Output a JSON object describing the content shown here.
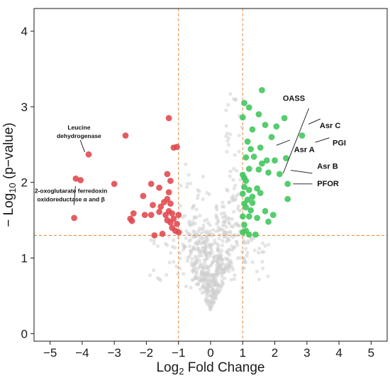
{
  "chart_data": {
    "type": "scatter",
    "title": "",
    "xlabel_pre": "Log",
    "xlabel_sub": "2",
    "xlabel_post": " Fold Change",
    "ylabel_pre": "− Log",
    "ylabel_sub": "10",
    "ylabel_post": " (p−value)",
    "xlim": [
      -5.5,
      5.5
    ],
    "ylim": [
      -0.1,
      4.3
    ],
    "x_ticks": [
      {
        "value": -5,
        "label": "−5"
      },
      {
        "value": -4,
        "label": "−4"
      },
      {
        "value": -3,
        "label": "−3"
      },
      {
        "value": -2,
        "label": "−2"
      },
      {
        "value": -1,
        "label": "−1"
      },
      {
        "value": 0,
        "label": "0"
      },
      {
        "value": 1,
        "label": "1"
      },
      {
        "value": 2,
        "label": "2"
      },
      {
        "value": 3,
        "label": "3"
      },
      {
        "value": 4,
        "label": "4"
      },
      {
        "value": 5,
        "label": "5"
      }
    ],
    "y_ticks": [
      {
        "value": 0,
        "label": "0"
      },
      {
        "value": 1,
        "label": "1"
      },
      {
        "value": 2,
        "label": "2"
      },
      {
        "value": 3,
        "label": "3"
      },
      {
        "value": 4,
        "label": "4"
      }
    ],
    "thresholds": {
      "fold_change": [
        -1,
        1
      ],
      "neg_log10_p": 1.3
    },
    "grid": false,
    "colors": {
      "down": "#e0474c",
      "up": "#3fc55a",
      "ns": "#cfcfcf",
      "threshold": "#e8873a"
    },
    "series": [
      {
        "group": "down",
        "points": [
          [
            -4.2,
            2.05
          ],
          [
            -4.05,
            2.03
          ],
          [
            -4.25,
            1.53
          ],
          [
            -3.8,
            2.37
          ],
          [
            -2.65,
            2.62
          ],
          [
            -3.0,
            1.98
          ],
          [
            -1.3,
            2.85
          ],
          [
            -1.15,
            2.46
          ],
          [
            -1.05,
            2.47
          ],
          [
            -1.35,
            2.11
          ],
          [
            -1.25,
            2.02
          ],
          [
            -1.3,
            1.87
          ],
          [
            -1.85,
            1.98
          ],
          [
            -1.6,
            1.93
          ],
          [
            -2.1,
            1.82
          ],
          [
            -1.35,
            1.78
          ],
          [
            -1.45,
            1.74
          ],
          [
            -1.8,
            1.7
          ],
          [
            -1.55,
            1.68
          ],
          [
            -1.25,
            1.72
          ],
          [
            -1.6,
            1.61
          ],
          [
            -1.3,
            1.62
          ],
          [
            -1.4,
            1.57
          ],
          [
            -1.2,
            1.59
          ],
          [
            -1.15,
            1.52
          ],
          [
            -1.0,
            1.57
          ],
          [
            -1.85,
            1.57
          ],
          [
            -2.05,
            1.57
          ],
          [
            -2.4,
            1.59
          ],
          [
            -2.5,
            1.52
          ],
          [
            -2.45,
            1.49
          ],
          [
            -1.05,
            1.45
          ],
          [
            -1.1,
            1.36
          ],
          [
            -1.0,
            1.34
          ],
          [
            -1.5,
            1.32
          ],
          [
            -1.75,
            1.3
          ],
          [
            -1.2,
            1.4
          ],
          [
            -1.25,
            1.47
          ],
          [
            -1.35,
            1.5
          ]
        ]
      },
      {
        "group": "up",
        "points": [
          [
            1.6,
            3.22
          ],
          [
            1.05,
            3.05
          ],
          [
            1.2,
            2.99
          ],
          [
            1.5,
            2.9
          ],
          [
            1.7,
            2.76
          ],
          [
            1.0,
            2.86
          ],
          [
            2.05,
            2.74
          ],
          [
            1.3,
            2.7
          ],
          [
            2.3,
            2.85
          ],
          [
            2.85,
            2.62
          ],
          [
            1.9,
            2.6
          ],
          [
            1.15,
            2.54
          ],
          [
            1.55,
            2.46
          ],
          [
            1.25,
            2.44
          ],
          [
            1.1,
            2.33
          ],
          [
            1.35,
            2.34
          ],
          [
            1.6,
            2.25
          ],
          [
            1.75,
            2.29
          ],
          [
            2.0,
            2.29
          ],
          [
            1.5,
            2.17
          ],
          [
            1.8,
            2.13
          ],
          [
            2.35,
            2.32
          ],
          [
            1.2,
            2.18
          ],
          [
            1.0,
            2.1
          ],
          [
            1.05,
            2.06
          ],
          [
            2.15,
            2.11
          ],
          [
            2.4,
            1.98
          ],
          [
            1.1,
            2.02
          ],
          [
            1.05,
            1.94
          ],
          [
            1.45,
            1.92
          ],
          [
            1.2,
            1.9
          ],
          [
            1.55,
            1.86
          ],
          [
            1.0,
            1.85
          ],
          [
            1.3,
            1.81
          ],
          [
            1.15,
            1.77
          ],
          [
            1.05,
            1.72
          ],
          [
            1.3,
            1.73
          ],
          [
            2.4,
            1.78
          ],
          [
            1.1,
            1.67
          ],
          [
            1.25,
            1.63
          ],
          [
            1.7,
            1.62
          ],
          [
            1.95,
            1.57
          ],
          [
            1.0,
            1.55
          ],
          [
            1.2,
            1.55
          ],
          [
            1.45,
            1.53
          ],
          [
            1.8,
            1.48
          ],
          [
            1.05,
            1.44
          ],
          [
            1.1,
            1.36
          ],
          [
            1.0,
            1.34
          ],
          [
            1.2,
            1.31
          ],
          [
            1.4,
            1.31
          ]
        ]
      }
    ],
    "ns_count": 650,
    "annotations": [
      {
        "id": "oass",
        "lines": [
          "OASS"
        ],
        "at": [
          2.05,
          2.75
        ],
        "tx": [
          2.25,
          3.08
        ],
        "anchor": "start",
        "size": "normal",
        "lx": [
          2.26,
          3.06
        ],
        "ly": [
          2.12,
          2.98
        ]
      },
      {
        "id": "asr-c",
        "lines": [
          "Asr C"
        ],
        "at": [
          2.32,
          2.84
        ],
        "tx": [
          3.4,
          2.72
        ],
        "anchor": "start",
        "size": "normal",
        "lx": [
          3.05,
          3.42
        ],
        "ly": [
          2.77,
          2.84
        ]
      },
      {
        "id": "pgi",
        "lines": [
          "PGI"
        ],
        "at": [
          2.86,
          2.62
        ],
        "tx": [
          3.8,
          2.49
        ],
        "anchor": "start",
        "size": "normal",
        "lx": [
          3.26,
          3.7
        ],
        "ly": [
          2.53,
          2.59
        ]
      },
      {
        "id": "asr-a",
        "lines": [
          "Asr A"
        ],
        "at": [
          1.9,
          2.6
        ],
        "tx": [
          2.6,
          2.4
        ],
        "anchor": "start",
        "size": "normal",
        "lx": [
          2.05,
          2.47
        ],
        "ly": [
          2.49,
          2.56
        ]
      },
      {
        "id": "asr-b",
        "lines": [
          "Asr B"
        ],
        "at": [
          2.15,
          2.11
        ],
        "tx": [
          3.32,
          2.18
        ],
        "anchor": "start",
        "size": "normal",
        "lx": [
          2.5,
          3.17
        ],
        "ly": [
          2.16,
          2.12
        ]
      },
      {
        "id": "pfor",
        "lines": [
          "PFOR"
        ],
        "at": [
          2.4,
          1.98
        ],
        "tx": [
          3.32,
          1.95
        ],
        "anchor": "start",
        "size": "normal",
        "lx": [
          2.57,
          3.17
        ],
        "ly": [
          1.98,
          1.98
        ]
      },
      {
        "id": "leucine-dh",
        "lines": [
          "Leucine",
          "dehydrogenase"
        ],
        "at": [
          -3.8,
          2.37
        ],
        "tx": [
          -4.1,
          2.7
        ],
        "anchor": "middle",
        "size": "small",
        "lx": [
          -3.92,
          -4.06
        ],
        "ly": [
          2.4,
          2.56
        ]
      },
      {
        "id": "oxoglutarate",
        "lines": [
          "2-oxoglutarate ferredoxin",
          "oxidoreductase α and β"
        ],
        "at": [
          -4.2,
          2.05
        ],
        "tx": [
          -4.35,
          1.86
        ],
        "anchor": "middle",
        "size": "small",
        "lx": [
          -4.21,
          -4.26
        ],
        "ly": [
          1.95,
          1.7
        ]
      }
    ]
  }
}
